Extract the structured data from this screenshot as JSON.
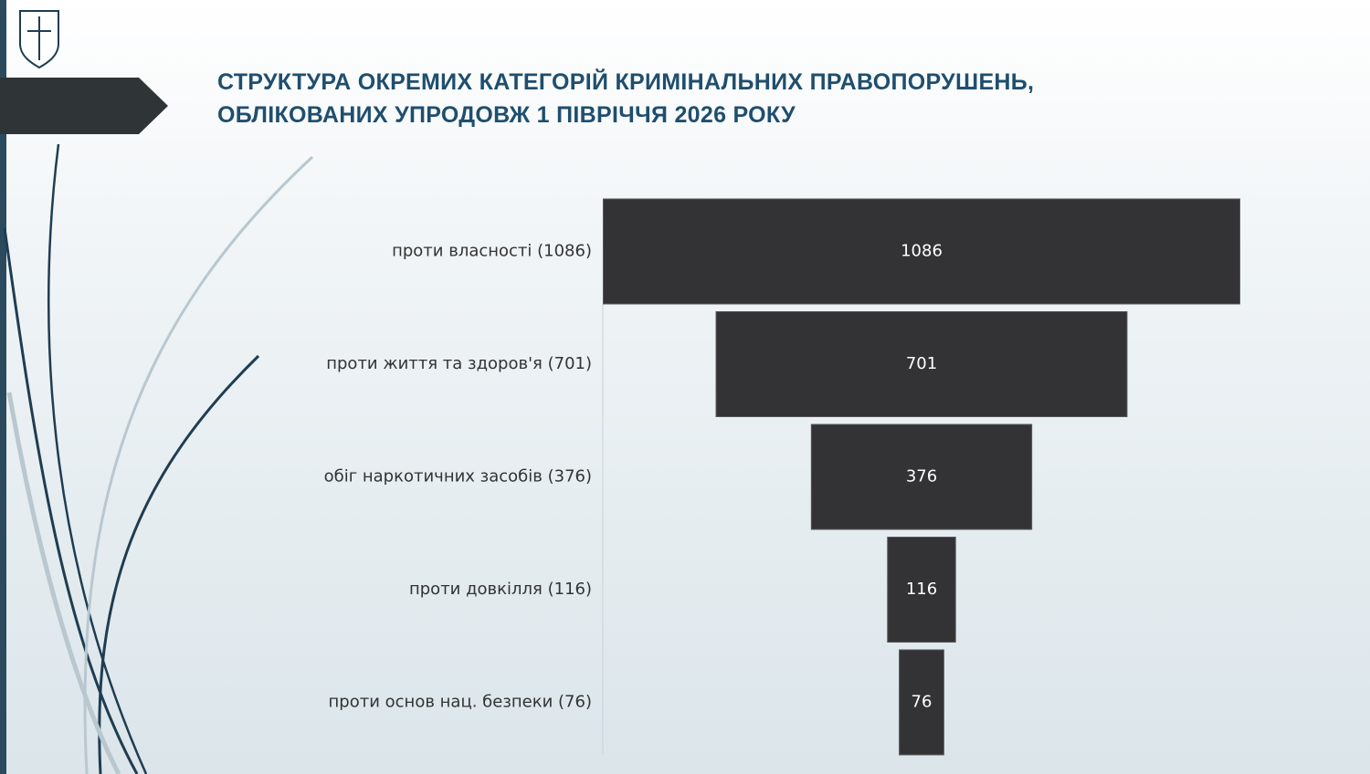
{
  "chart_data": {
    "type": "funnel",
    "title": "СТРУКТУРА ОКРЕМИХ КАТЕГОРІЙ КРИМІНАЛЬНИХ ПРАВОПОРУШЕНЬ, ОБЛІКОВАНИХ УПРОДОВЖ 1 ПІВРІЧЧЯ 2026 РОКУ",
    "categories": [
      "проти власності (1086)",
      "проти життя та здоров'я  (701)",
      "обіг наркотичних засобів (376)",
      "проти довкілля (116)",
      "проти основ нац. безпеки (76)"
    ],
    "values": [
      1086,
      701,
      376,
      116,
      76
    ],
    "color": "#333335"
  }
}
